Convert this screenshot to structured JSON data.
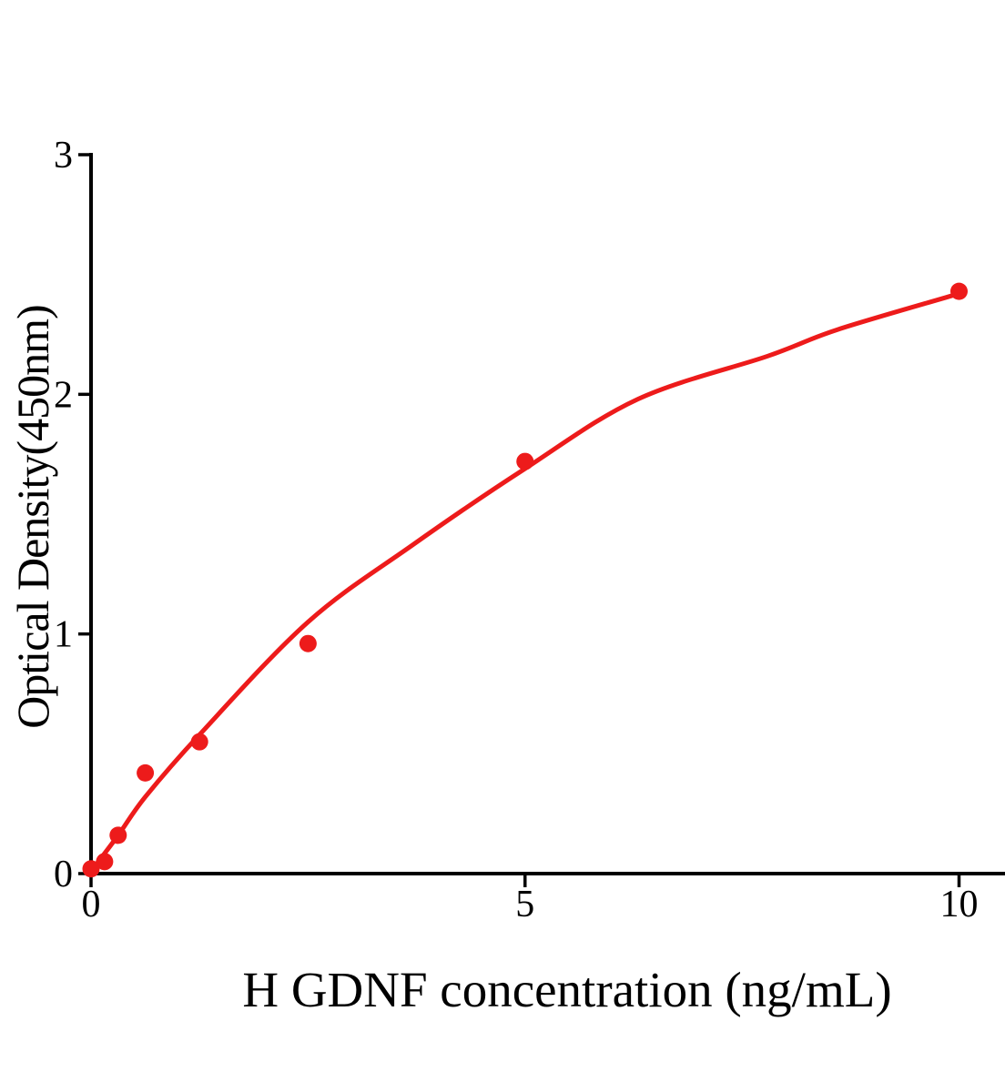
{
  "chart_data": {
    "type": "scatter",
    "title": "",
    "xlabel": "H GDNF concentration (ng/mL)",
    "ylabel": "Optical Density(450nm)",
    "x": [
      0,
      0.156,
      0.3125,
      0.625,
      1.25,
      2.5,
      5,
      10
    ],
    "y": [
      0.02,
      0.05,
      0.16,
      0.42,
      0.55,
      0.96,
      1.72,
      2.43
    ],
    "xticks": [
      0,
      5,
      10
    ],
    "yticks": [
      0,
      1,
      2,
      3
    ],
    "xlim": [
      0,
      10.55
    ],
    "ylim": [
      0,
      3
    ],
    "grid": false,
    "legend": "none",
    "marker_color": "#ED1B1B",
    "curve_color": "#ED1B1B",
    "axis_color": "#000000",
    "background": "#FFFFFF",
    "curve_points": [
      [
        0,
        0.01
      ],
      [
        0.3125,
        0.16
      ],
      [
        0.625,
        0.32
      ],
      [
        1.25,
        0.58
      ],
      [
        2.5,
        1.05
      ],
      [
        3.7,
        1.37
      ],
      [
        5,
        1.69
      ],
      [
        6.3,
        1.98
      ],
      [
        7.8,
        2.16
      ],
      [
        8.6,
        2.27
      ],
      [
        10,
        2.42
      ]
    ]
  }
}
